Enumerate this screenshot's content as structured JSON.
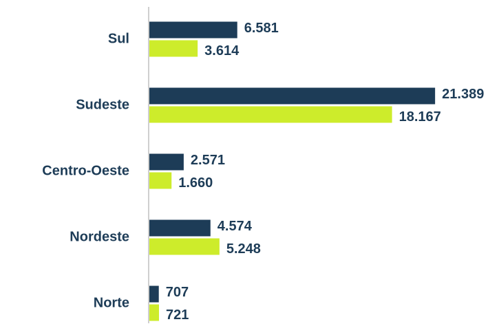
{
  "chart_data": {
    "type": "hbar",
    "categories": [
      "Sul",
      "Sudeste",
      "Centro-Oeste",
      "Nordeste",
      "Norte"
    ],
    "series": [
      {
        "color": "#1d3c57",
        "values": [
          6581,
          21389,
          2571,
          4574,
          707
        ],
        "value_labels": [
          "6.581",
          "21.389",
          "2.571",
          "4.574",
          "707"
        ]
      },
      {
        "color": "#cdec2b",
        "values": [
          3614,
          18167,
          1660,
          5248,
          721
        ],
        "value_labels": [
          "3.614",
          "18.167",
          "1.660",
          "5.248",
          "721"
        ]
      }
    ],
    "xlim": [
      0,
      22000
    ]
  }
}
